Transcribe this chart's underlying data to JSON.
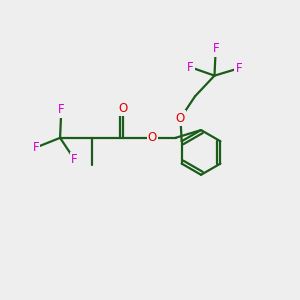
{
  "bg_color": "#eeeeee",
  "bond_color": "#1a5c1a",
  "bond_width": 1.6,
  "F_color": "#cc00cc",
  "O_color": "#dd0000",
  "font_size": 8.5,
  "xlim": [
    -1,
    11
  ],
  "ylim": [
    -1,
    11
  ]
}
